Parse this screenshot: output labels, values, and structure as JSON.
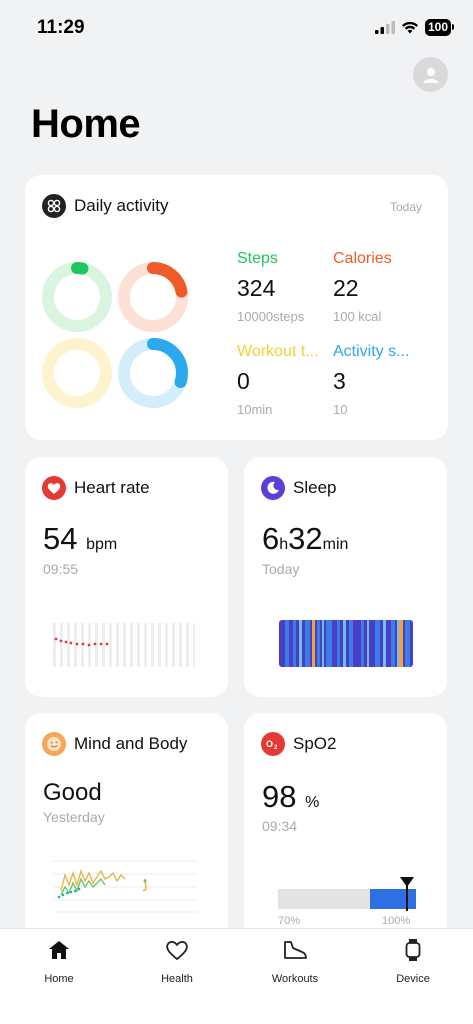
{
  "status_bar": {
    "time": "11:29",
    "battery": "100"
  },
  "page": {
    "title": "Home"
  },
  "daily_activity": {
    "title": "Daily activity",
    "period": "Today",
    "metrics": [
      {
        "label": "Steps",
        "value": "324",
        "goal": "10000steps",
        "color": "#22c55e",
        "progress": 0.03
      },
      {
        "label": "Calories",
        "value": "22",
        "goal": "100 kcal",
        "color": "#f05a28",
        "progress": 0.22
      },
      {
        "label": "Workout t...",
        "value": "0",
        "goal": "10min",
        "color": "#f5d33c",
        "progress": 0.0
      },
      {
        "label": "Activity s...",
        "value": "3",
        "goal": "10",
        "color": "#2ba8ee",
        "progress": 0.3
      }
    ]
  },
  "heart_rate": {
    "title": "Heart rate",
    "value": "54",
    "unit": "bpm",
    "time": "09:55",
    "color": "#e53935"
  },
  "sleep": {
    "title": "Sleep",
    "hours": "6",
    "h_unit": "h",
    "minutes": "32",
    "m_unit": "min",
    "date": "Today",
    "color": "#5b3fd6"
  },
  "mind_body": {
    "title": "Mind and Body",
    "value": "Good",
    "date": "Yesterday"
  },
  "spo2": {
    "title": "SpO2",
    "value": "98",
    "unit": "%",
    "time": "09:34",
    "scale_min": "70%",
    "scale_max": "100%",
    "level": 0.98,
    "color": "#e53935"
  },
  "tab_bar": {
    "tabs": [
      {
        "label": "Home"
      },
      {
        "label": "Health"
      },
      {
        "label": "Workouts"
      },
      {
        "label": "Device"
      }
    ]
  }
}
